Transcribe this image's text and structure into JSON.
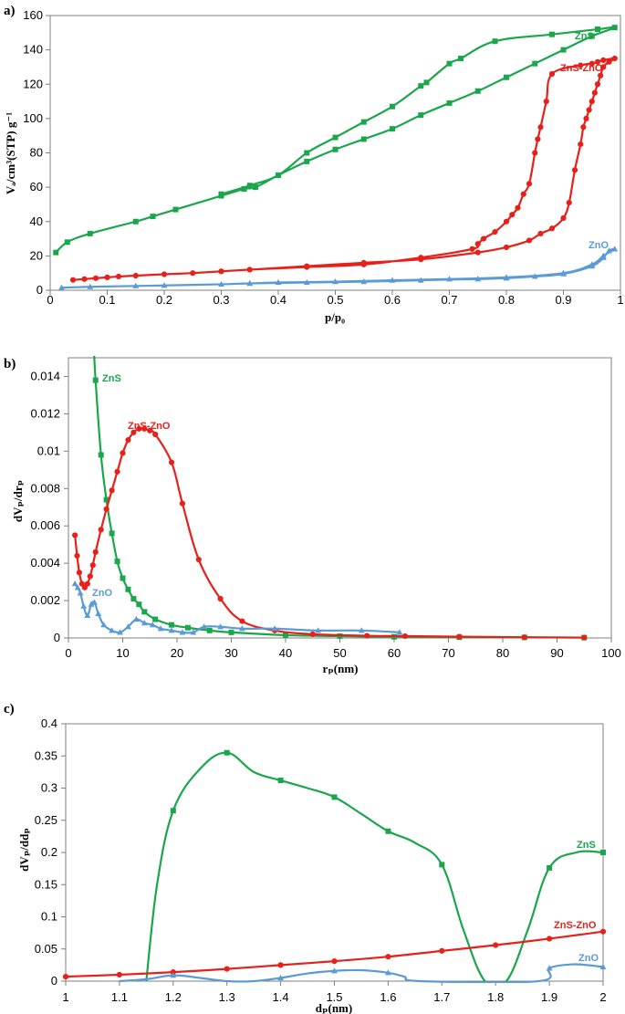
{
  "colors": {
    "ZnS": "#1aa64a",
    "ZnS-ZnO": "#e8201a",
    "ZnO": "#5b9bd5"
  },
  "chart_data": [
    {
      "panel": "a)",
      "type": "line",
      "xlabel": "p/p₀",
      "ylabel": "Vₐ/cm³(STP) g⁻¹",
      "xlim": [
        0,
        1
      ],
      "ylim": [
        0,
        160
      ],
      "xticks": [
        0,
        0.1,
        0.2,
        0.3,
        0.4,
        0.5,
        0.6,
        0.7,
        0.8,
        0.9,
        1
      ],
      "xtick_labels": [
        "0",
        "0.1",
        "0.2",
        "0.3",
        "0.4",
        "0.5",
        "0.6",
        "0.7",
        "0.8",
        "0.9",
        "1"
      ],
      "yticks": [
        0,
        20,
        40,
        60,
        80,
        100,
        120,
        140,
        160
      ],
      "grid": false,
      "series": [
        {
          "name": "ZnS",
          "color": "ZnS",
          "marker": "square",
          "x": [
            0.01,
            0.03,
            0.07,
            0.15,
            0.18,
            0.22,
            0.3,
            0.34,
            0.36,
            0.4,
            0.45,
            0.5,
            0.55,
            0.6,
            0.65,
            0.7,
            0.75,
            0.8,
            0.85,
            0.9,
            0.95,
            0.99,
            0.96,
            0.88,
            0.78,
            0.72,
            0.7,
            0.66,
            0.65,
            0.6,
            0.55,
            0.5,
            0.45,
            0.4,
            0.35,
            0.3
          ],
          "y": [
            22,
            28,
            33,
            40,
            43,
            47,
            55,
            59,
            60,
            67,
            75,
            82,
            88,
            94,
            102,
            109,
            116,
            124,
            132,
            140,
            148,
            153,
            152,
            149,
            145,
            135,
            132,
            121,
            119,
            107,
            98,
            89,
            80,
            67,
            61,
            56
          ]
        },
        {
          "name": "ZnS-ZnO",
          "color": "ZnS-ZnO",
          "marker": "circle",
          "x": [
            0.04,
            0.06,
            0.08,
            0.1,
            0.12,
            0.15,
            0.2,
            0.25,
            0.3,
            0.35,
            0.45,
            0.55,
            0.65,
            0.75,
            0.8,
            0.84,
            0.86,
            0.88,
            0.9,
            0.91,
            0.92,
            0.93,
            0.935,
            0.94,
            0.945,
            0.95,
            0.955,
            0.96,
            0.965,
            0.97,
            0.98,
            0.99,
            0.97,
            0.96,
            0.95,
            0.93,
            0.88,
            0.87,
            0.86,
            0.855,
            0.85,
            0.84,
            0.83,
            0.82,
            0.81,
            0.8,
            0.78,
            0.76,
            0.75,
            0.74,
            0.65,
            0.55,
            0.45,
            0.35,
            0.3
          ],
          "y": [
            6,
            6.5,
            7,
            7.5,
            8,
            8.5,
            9.3,
            10,
            11,
            12,
            14,
            16,
            18,
            22,
            25,
            29,
            33,
            36,
            42,
            51,
            70,
            85,
            95,
            100,
            105,
            110,
            115,
            120,
            125,
            130,
            133,
            135,
            134,
            133,
            132,
            131,
            126,
            110,
            95,
            88,
            80,
            62,
            56,
            48,
            44,
            40,
            34,
            30,
            27,
            24,
            19,
            15,
            13.5,
            12,
            11
          ]
        },
        {
          "name": "ZnO",
          "color": "ZnO",
          "marker": "triangle",
          "x": [
            0.02,
            0.07,
            0.15,
            0.2,
            0.3,
            0.35,
            0.45,
            0.55,
            0.65,
            0.75,
            0.8,
            0.85,
            0.9,
            0.95,
            0.97,
            0.98,
            0.99,
            0.97,
            0.95,
            0.9,
            0.8,
            0.7,
            0.6,
            0.5,
            0.4,
            0.35
          ],
          "y": [
            1.5,
            2,
            2.5,
            2.8,
            3.5,
            4,
            4.5,
            5,
            5.8,
            6.5,
            7,
            8,
            9.5,
            14,
            19,
            23,
            24,
            20,
            15,
            10,
            7.5,
            6.5,
            5.8,
            5,
            4.5,
            4
          ]
        }
      ]
    },
    {
      "panel": "b)",
      "type": "line",
      "xlabel": "rₚ(nm)",
      "ylabel": "dVₚ/drₚ",
      "xlim": [
        0,
        100
      ],
      "ylim": [
        0,
        0.015
      ],
      "xticks": [
        0,
        10,
        20,
        30,
        40,
        50,
        60,
        70,
        80,
        90,
        100
      ],
      "xtick_labels": [
        "0",
        "10",
        "20",
        "30",
        "40",
        "50",
        "60",
        "70",
        "80",
        "90",
        "100"
      ],
      "yticks": [
        0,
        0.002,
        0.004,
        0.006,
        0.008,
        0.01,
        0.012,
        0.014
      ],
      "ytick_labels": [
        "0",
        "0.002",
        "0.004",
        "0.006",
        "0.008",
        "0.01",
        "0.012",
        "0.014"
      ],
      "grid": false,
      "series": [
        {
          "name": "ZnS",
          "color": "ZnS",
          "marker": "square",
          "x": [
            4.6,
            5,
            6,
            7,
            8,
            9,
            10,
            11,
            12,
            13,
            14,
            16,
            19,
            22,
            26,
            30,
            40,
            50,
            60,
            72,
            84,
            95
          ],
          "y": [
            0.016,
            0.0138,
            0.0098,
            0.0074,
            0.0056,
            0.0041,
            0.0032,
            0.0026,
            0.0021,
            0.0018,
            0.0014,
            0.001,
            0.0007,
            0.00055,
            0.0004,
            0.0003,
            0.00015,
            0.0001,
            6e-05,
            4e-05,
            3e-05,
            2e-05
          ]
        },
        {
          "name": "ZnS-ZnO",
          "color": "ZnS-ZnO",
          "marker": "circle",
          "x": [
            1.2,
            1.6,
            2,
            2.5,
            3,
            3.5,
            4,
            4.5,
            5,
            6,
            7,
            8,
            9,
            10,
            11,
            12,
            13,
            14,
            15,
            16,
            19,
            21,
            24,
            28,
            32,
            38,
            45,
            55,
            62,
            72,
            84,
            95
          ],
          "y": [
            0.0055,
            0.0044,
            0.0035,
            0.0029,
            0.0027,
            0.0029,
            0.0033,
            0.0039,
            0.0046,
            0.0058,
            0.0069,
            0.0079,
            0.0089,
            0.0099,
            0.0106,
            0.011,
            0.0112,
            0.0112,
            0.0111,
            0.0109,
            0.0094,
            0.0072,
            0.0042,
            0.0021,
            0.0009,
            0.0004,
            0.0002,
            0.00012,
            0.0001,
            7e-05,
            4e-05,
            2e-05
          ]
        },
        {
          "name": "ZnO",
          "color": "ZnO",
          "marker": "triangle",
          "x": [
            1.2,
            1.7,
            2.2,
            2.8,
            3.5,
            4.2,
            4.8,
            5.5,
            6.5,
            8,
            9.5,
            11,
            12.5,
            14,
            15.5,
            17,
            19,
            21,
            23,
            25,
            28,
            32,
            38,
            46,
            54,
            61
          ],
          "y": [
            0.0029,
            0.0027,
            0.0024,
            0.0017,
            0.0012,
            0.0018,
            0.0019,
            0.0013,
            0.0007,
            0.0004,
            0.0003,
            0.0006,
            0.001,
            0.0008,
            0.0007,
            0.0005,
            0.0004,
            0.0003,
            0.0003,
            0.0006,
            0.0006,
            0.0005,
            0.0005,
            0.0004,
            0.0004,
            0.0003
          ]
        }
      ]
    },
    {
      "panel": "c)",
      "type": "line",
      "xlabel": "dₚ(nm)",
      "ylabel": "dVₚ/ddₚ",
      "xlim": [
        1,
        2
      ],
      "ylim": [
        0,
        0.4
      ],
      "xticks": [
        1,
        1.1,
        1.2,
        1.3,
        1.4,
        1.5,
        1.6,
        1.7,
        1.8,
        1.9,
        2
      ],
      "xtick_labels": [
        "1",
        "1.1",
        "1.2",
        "1.3",
        "1.4",
        "1.5",
        "1.6",
        "1.7",
        "1.8",
        "1.9",
        "2"
      ],
      "yticks": [
        0,
        0.05,
        0.1,
        0.15,
        0.2,
        0.25,
        0.3,
        0.35,
        0.4
      ],
      "ytick_labels": [
        "0",
        "0.05",
        "0.1",
        "0.15",
        "0.2",
        "0.25",
        "0.3",
        "0.35",
        "0.4"
      ],
      "grid": false,
      "series": [
        {
          "name": "ZnS",
          "color": "ZnS",
          "marker": "square",
          "x": [
            1.15,
            1.17,
            1.2,
            1.25,
            1.3,
            1.35,
            1.4,
            1.45,
            1.5,
            1.55,
            1.6,
            1.65,
            1.7,
            1.74,
            1.78,
            1.82,
            1.86,
            1.9,
            1.95,
            2
          ],
          "y": [
            0,
            0.15,
            0.265,
            0.33,
            0.355,
            0.325,
            0.312,
            0.3,
            0.286,
            0.26,
            0.233,
            0.215,
            0.181,
            0.08,
            0,
            0,
            0.08,
            0.176,
            0.2,
            0.2
          ],
          "marker_idx": [
            2,
            4,
            6,
            8,
            10,
            12,
            17,
            19
          ]
        },
        {
          "name": "ZnS-ZnO",
          "color": "ZnS-ZnO",
          "marker": "circle",
          "x": [
            1,
            1.1,
            1.2,
            1.3,
            1.4,
            1.5,
            1.6,
            1.7,
            1.8,
            1.9,
            2
          ],
          "y": [
            0.007,
            0.01,
            0.014,
            0.019,
            0.025,
            0.031,
            0.038,
            0.047,
            0.056,
            0.066,
            0.077
          ]
        },
        {
          "name": "ZnO",
          "color": "ZnO",
          "marker": "triangle",
          "x": [
            1.1,
            1.15,
            1.2,
            1.25,
            1.3,
            1.35,
            1.4,
            1.45,
            1.5,
            1.55,
            1.6,
            1.63,
            1.66,
            1.88,
            1.9,
            1.94,
            1.97,
            2
          ],
          "y": [
            0,
            0.003,
            0.009,
            0.005,
            0,
            0,
            0.005,
            0.012,
            0.016,
            0.017,
            0.013,
            0.007,
            0,
            0,
            0.02,
            0.026,
            0.025,
            0.022
          ],
          "marker_idx": [
            2,
            6,
            8,
            10,
            14,
            17
          ]
        }
      ]
    }
  ]
}
